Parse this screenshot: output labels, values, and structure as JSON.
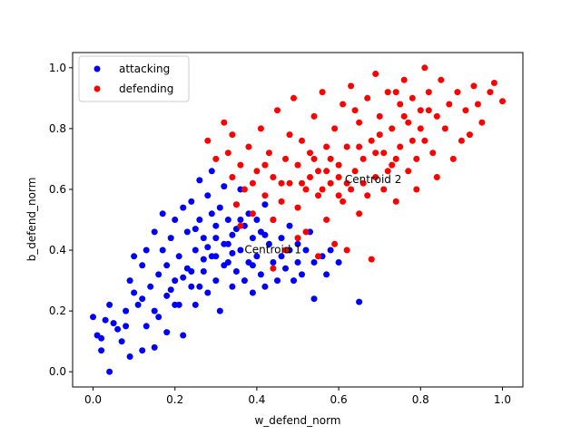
{
  "chart_data": {
    "type": "scatter",
    "title": "",
    "xlabel": "w_defend_norm",
    "ylabel": "b_defend_norm",
    "xlim": [
      -0.05,
      1.05
    ],
    "ylim": [
      -0.05,
      1.05
    ],
    "xticks": [
      0.0,
      0.2,
      0.4,
      0.6,
      0.8,
      1.0
    ],
    "yticks": [
      0.0,
      0.2,
      0.4,
      0.6,
      0.8,
      1.0
    ],
    "xtick_labels": [
      "0.0",
      "0.2",
      "0.4",
      "0.6",
      "0.8",
      "1.0"
    ],
    "ytick_labels": [
      "0.0",
      "0.2",
      "0.4",
      "0.6",
      "0.8",
      "1.0"
    ],
    "grid": false,
    "legend": {
      "position": "top-left",
      "entries": [
        {
          "label": "attacking",
          "color": "#0000ff"
        },
        {
          "label": "defending",
          "color": "#ff0000"
        }
      ]
    },
    "annotations": [
      {
        "text": "Centroid 1",
        "x": 0.37,
        "y": 0.39
      },
      {
        "text": "Centroid 2",
        "x": 0.615,
        "y": 0.62
      }
    ],
    "series": [
      {
        "name": "attacking",
        "color": "#0000ff",
        "points": [
          [
            0.0,
            0.18
          ],
          [
            0.01,
            0.12
          ],
          [
            0.02,
            0.11
          ],
          [
            0.02,
            0.07
          ],
          [
            0.04,
            0.0
          ],
          [
            0.03,
            0.17
          ],
          [
            0.04,
            0.22
          ],
          [
            0.05,
            0.16
          ],
          [
            0.06,
            0.14
          ],
          [
            0.07,
            0.1
          ],
          [
            0.08,
            0.2
          ],
          [
            0.09,
            0.05
          ],
          [
            0.09,
            0.3
          ],
          [
            0.1,
            0.26
          ],
          [
            0.1,
            0.38
          ],
          [
            0.11,
            0.22
          ],
          [
            0.12,
            0.07
          ],
          [
            0.12,
            0.35
          ],
          [
            0.13,
            0.15
          ],
          [
            0.13,
            0.4
          ],
          [
            0.14,
            0.28
          ],
          [
            0.15,
            0.08
          ],
          [
            0.15,
            0.46
          ],
          [
            0.16,
            0.32
          ],
          [
            0.16,
            0.18
          ],
          [
            0.17,
            0.4
          ],
          [
            0.17,
            0.52
          ],
          [
            0.18,
            0.25
          ],
          [
            0.18,
            0.13
          ],
          [
            0.19,
            0.44
          ],
          [
            0.2,
            0.3
          ],
          [
            0.2,
            0.5
          ],
          [
            0.21,
            0.22
          ],
          [
            0.21,
            0.38
          ],
          [
            0.22,
            0.12
          ],
          [
            0.22,
            0.54
          ],
          [
            0.23,
            0.34
          ],
          [
            0.23,
            0.46
          ],
          [
            0.24,
            0.28
          ],
          [
            0.24,
            0.56
          ],
          [
            0.25,
            0.4
          ],
          [
            0.25,
            0.22
          ],
          [
            0.26,
            0.5
          ],
          [
            0.26,
            0.63
          ],
          [
            0.27,
            0.33
          ],
          [
            0.27,
            0.44
          ],
          [
            0.28,
            0.58
          ],
          [
            0.28,
            0.26
          ],
          [
            0.29,
            0.66
          ],
          [
            0.29,
            0.38
          ],
          [
            0.3,
            0.48
          ],
          [
            0.3,
            0.3
          ],
          [
            0.31,
            0.54
          ],
          [
            0.31,
            0.2
          ],
          [
            0.32,
            0.42
          ],
          [
            0.32,
            0.61
          ],
          [
            0.33,
            0.36
          ],
          [
            0.33,
            0.5
          ],
          [
            0.34,
            0.28
          ],
          [
            0.34,
            0.45
          ],
          [
            0.35,
            0.55
          ],
          [
            0.35,
            0.33
          ],
          [
            0.36,
            0.4
          ],
          [
            0.36,
            0.6
          ],
          [
            0.37,
            0.3
          ],
          [
            0.37,
            0.48
          ],
          [
            0.38,
            0.52
          ],
          [
            0.38,
            0.36
          ],
          [
            0.39,
            0.44
          ],
          [
            0.39,
            0.26
          ],
          [
            0.4,
            0.5
          ],
          [
            0.4,
            0.38
          ],
          [
            0.41,
            0.32
          ],
          [
            0.41,
            0.46
          ],
          [
            0.42,
            0.55
          ],
          [
            0.42,
            0.28
          ],
          [
            0.43,
            0.42
          ],
          [
            0.44,
            0.36
          ],
          [
            0.44,
            0.5
          ],
          [
            0.45,
            0.3
          ],
          [
            0.46,
            0.44
          ],
          [
            0.46,
            0.38
          ],
          [
            0.47,
            0.34
          ],
          [
            0.48,
            0.48
          ],
          [
            0.48,
            0.4
          ],
          [
            0.49,
            0.3
          ],
          [
            0.5,
            0.42
          ],
          [
            0.5,
            0.36
          ],
          [
            0.51,
            0.32
          ],
          [
            0.52,
            0.4
          ],
          [
            0.53,
            0.46
          ],
          [
            0.54,
            0.24
          ],
          [
            0.54,
            0.36
          ],
          [
            0.56,
            0.38
          ],
          [
            0.57,
            0.32
          ],
          [
            0.58,
            0.4
          ],
          [
            0.6,
            0.36
          ],
          [
            0.65,
            0.23
          ],
          [
            0.3,
            0.44
          ],
          [
            0.25,
            0.47
          ],
          [
            0.28,
            0.41
          ],
          [
            0.32,
            0.35
          ],
          [
            0.35,
            0.47
          ],
          [
            0.27,
            0.37
          ],
          [
            0.22,
            0.31
          ],
          [
            0.19,
            0.27
          ],
          [
            0.24,
            0.33
          ],
          [
            0.33,
            0.42
          ],
          [
            0.36,
            0.5
          ],
          [
            0.39,
            0.35
          ],
          [
            0.42,
            0.45
          ],
          [
            0.3,
            0.38
          ],
          [
            0.26,
            0.28
          ],
          [
            0.2,
            0.22
          ],
          [
            0.15,
            0.2
          ],
          [
            0.12,
            0.24
          ],
          [
            0.08,
            0.15
          ],
          [
            0.18,
            0.35
          ],
          [
            0.29,
            0.52
          ],
          [
            0.34,
            0.39
          ]
        ]
      },
      {
        "name": "defending",
        "color": "#ff0000",
        "points": [
          [
            0.28,
            0.76
          ],
          [
            0.3,
            0.7
          ],
          [
            0.32,
            0.82
          ],
          [
            0.34,
            0.64
          ],
          [
            0.34,
            0.78
          ],
          [
            0.35,
            0.55
          ],
          [
            0.36,
            0.68
          ],
          [
            0.37,
            0.6
          ],
          [
            0.38,
            0.74
          ],
          [
            0.39,
            0.52
          ],
          [
            0.4,
            0.66
          ],
          [
            0.41,
            0.8
          ],
          [
            0.42,
            0.58
          ],
          [
            0.43,
            0.72
          ],
          [
            0.44,
            0.5
          ],
          [
            0.44,
            0.64
          ],
          [
            0.45,
            0.86
          ],
          [
            0.46,
            0.56
          ],
          [
            0.47,
            0.7
          ],
          [
            0.48,
            0.62
          ],
          [
            0.48,
            0.78
          ],
          [
            0.49,
            0.9
          ],
          [
            0.5,
            0.54
          ],
          [
            0.5,
            0.68
          ],
          [
            0.51,
            0.76
          ],
          [
            0.52,
            0.6
          ],
          [
            0.52,
            0.46
          ],
          [
            0.53,
            0.72
          ],
          [
            0.54,
            0.84
          ],
          [
            0.55,
            0.58
          ],
          [
            0.55,
            0.66
          ],
          [
            0.56,
            0.92
          ],
          [
            0.57,
            0.5
          ],
          [
            0.57,
            0.74
          ],
          [
            0.58,
            0.62
          ],
          [
            0.59,
            0.8
          ],
          [
            0.59,
            0.42
          ],
          [
            0.6,
            0.68
          ],
          [
            0.61,
            0.56
          ],
          [
            0.61,
            0.88
          ],
          [
            0.62,
            0.74
          ],
          [
            0.63,
            0.6
          ],
          [
            0.63,
            0.94
          ],
          [
            0.64,
            0.66
          ],
          [
            0.65,
            0.52
          ],
          [
            0.65,
            0.82
          ],
          [
            0.66,
            0.7
          ],
          [
            0.67,
            0.58
          ],
          [
            0.67,
            0.9
          ],
          [
            0.68,
            0.76
          ],
          [
            0.69,
            0.64
          ],
          [
            0.69,
            0.98
          ],
          [
            0.7,
            0.84
          ],
          [
            0.71,
            0.6
          ],
          [
            0.71,
            0.72
          ],
          [
            0.72,
            0.92
          ],
          [
            0.73,
            0.68
          ],
          [
            0.73,
            0.8
          ],
          [
            0.74,
            0.56
          ],
          [
            0.75,
            0.88
          ],
          [
            0.75,
            0.74
          ],
          [
            0.76,
            0.96
          ],
          [
            0.77,
            0.66
          ],
          [
            0.77,
            0.82
          ],
          [
            0.78,
            0.9
          ],
          [
            0.79,
            0.7
          ],
          [
            0.79,
            0.6
          ],
          [
            0.8,
            0.86
          ],
          [
            0.81,
            0.76
          ],
          [
            0.81,
            1.0
          ],
          [
            0.82,
            0.92
          ],
          [
            0.83,
            0.72
          ],
          [
            0.84,
            0.84
          ],
          [
            0.84,
            0.64
          ],
          [
            0.85,
            0.96
          ],
          [
            0.86,
            0.8
          ],
          [
            0.87,
            0.88
          ],
          [
            0.88,
            0.7
          ],
          [
            0.89,
            0.92
          ],
          [
            0.9,
            0.76
          ],
          [
            0.91,
            0.86
          ],
          [
            0.92,
            0.78
          ],
          [
            0.93,
            0.94
          ],
          [
            0.94,
            0.88
          ],
          [
            0.95,
            0.82
          ],
          [
            0.97,
            0.92
          ],
          [
            0.98,
            0.95
          ],
          [
            1.0,
            0.89
          ],
          [
            0.44,
            0.34
          ],
          [
            0.47,
            0.4
          ],
          [
            0.5,
            0.44
          ],
          [
            0.55,
            0.38
          ],
          [
            0.62,
            0.4
          ],
          [
            0.68,
            0.37
          ],
          [
            0.6,
            0.64
          ],
          [
            0.58,
            0.7
          ],
          [
            0.65,
            0.74
          ],
          [
            0.7,
            0.78
          ],
          [
            0.62,
            0.62
          ],
          [
            0.56,
            0.6
          ],
          [
            0.66,
            0.62
          ],
          [
            0.72,
            0.66
          ],
          [
            0.53,
            0.64
          ],
          [
            0.64,
            0.86
          ],
          [
            0.74,
            0.92
          ],
          [
            0.76,
            0.84
          ],
          [
            0.8,
            0.8
          ],
          [
            0.46,
            0.62
          ],
          [
            0.42,
            0.68
          ],
          [
            0.39,
            0.62
          ],
          [
            0.33,
            0.72
          ],
          [
            0.36,
            0.48
          ],
          [
            0.82,
            0.86
          ],
          [
            0.78,
            0.76
          ],
          [
            0.74,
            0.7
          ],
          [
            0.69,
            0.72
          ],
          [
            0.6,
            0.58
          ],
          [
            0.57,
            0.66
          ],
          [
            0.54,
            0.7
          ],
          [
            0.51,
            0.62
          ]
        ]
      }
    ]
  }
}
